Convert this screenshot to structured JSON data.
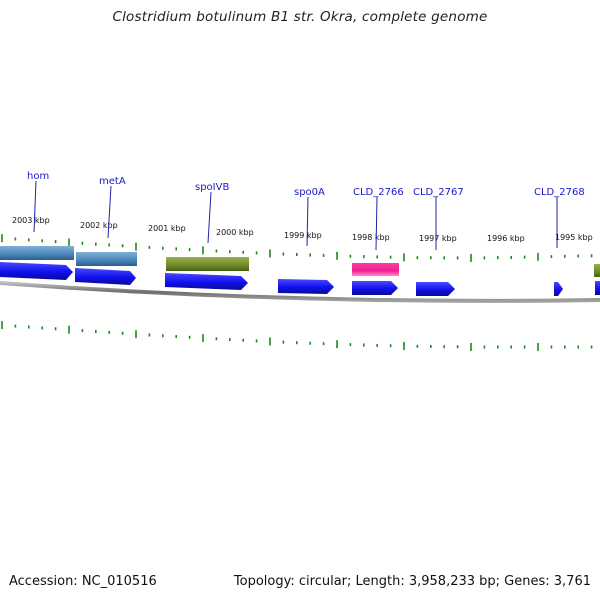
{
  "title": "Clostridium botulinum B1 str. Okra, complete genome",
  "footer": {
    "accession": "Accession: NC_010516",
    "summary": "Topology: circular; Length: 3,958,233 bp; Genes: 3,761"
  },
  "colors": {
    "gene_blue": "#1f1ff0",
    "feature_steelblue": "#4a86b8",
    "feature_olive": "#6e8a2a",
    "feature_magenta": "#ee2291",
    "label_blue": "#1a1acc",
    "tick_green": "#1a8a1a",
    "backbone_gray": "#8a8a8a"
  },
  "scale_labels": [
    "2003 kbp",
    "2002 kbp",
    "2001 kbp",
    "2000 kbp",
    "1999 kbp",
    "1998 kbp",
    "1997 kbp",
    "1996 kbp",
    "1995 kbp"
  ],
  "gene_labels": [
    "hom",
    "metA",
    "spoIVB",
    "spo0A",
    "CLD_2766",
    "CLD_2767",
    "CLD_2768"
  ]
}
